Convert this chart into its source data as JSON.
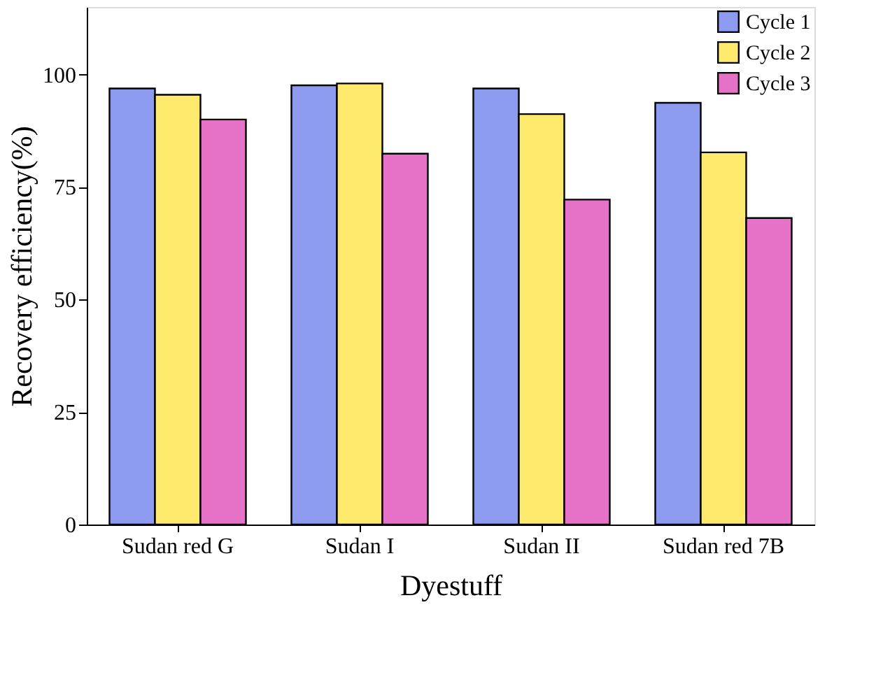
{
  "chart_data": {
    "type": "bar",
    "xlabel": "Dyestuff",
    "ylabel": "Recovery efficiency(%)",
    "categories": [
      "Sudan red G",
      "Sudan I",
      "Sudan II",
      "Sudan red 7B"
    ],
    "series": [
      {
        "name": "Cycle 1",
        "color": "#8c9af0",
        "values": [
          96.9,
          97.6,
          96.9,
          93.7
        ]
      },
      {
        "name": "Cycle 2",
        "color": "#fde96b",
        "values": [
          95.5,
          98.0,
          91.2,
          82.7
        ]
      },
      {
        "name": "Cycle 3",
        "color": "#e672c8",
        "values": [
          90.0,
          82.4,
          72.2,
          68.1
        ]
      }
    ],
    "ylim": [
      0,
      115
    ],
    "yticks": [
      0,
      25,
      50,
      75,
      100
    ],
    "grid": false,
    "legend": "top right"
  }
}
